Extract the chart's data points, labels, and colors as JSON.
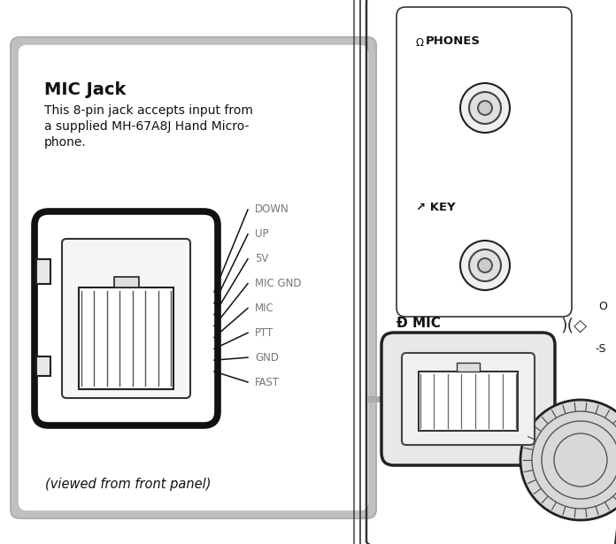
{
  "bg_color": "#ffffff",
  "gray_box_color": "#c0c0c0",
  "white_box_color": "#ffffff",
  "title": "MIC Jack",
  "desc1": "This 8-pin jack accepts input from",
  "desc2": "a supplied MH-67A8J Hand Micro-",
  "desc3": "phone.",
  "footer": "(viewed from front panel)",
  "pin_labels": [
    "DOWN",
    "UP",
    "5V",
    "MIC GND",
    "MIC",
    "PTT",
    "GND",
    "FAST"
  ],
  "label_color": "#777777",
  "line_color": "#111111",
  "text_color": "#111111",
  "fig_w": 6.96,
  "fig_h": 6.15,
  "dpi": 100
}
